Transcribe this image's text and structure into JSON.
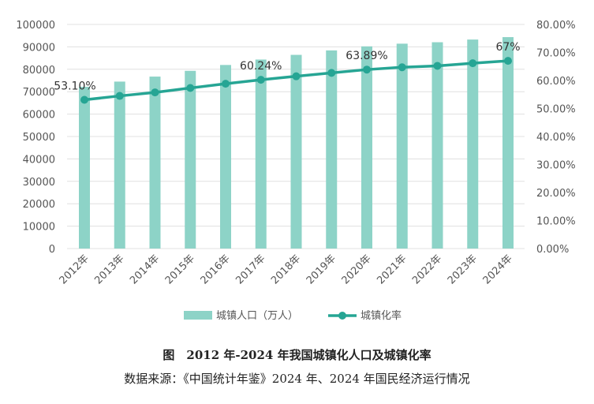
{
  "chart_data": {
    "type": "bar+line",
    "categories": [
      "2012年",
      "2013年",
      "2014年",
      "2015年",
      "2016年",
      "2017年",
      "2018年",
      "2019年",
      "2020年",
      "2021年",
      "2022年",
      "2023年",
      "2024年"
    ],
    "series": [
      {
        "name": "城镇人口（万人）",
        "type": "bar",
        "axis": "left",
        "color": "#8dd3c7",
        "values": [
          72175,
          74502,
          76738,
          79302,
          81924,
          84343,
          86433,
          88426,
          90220,
          91425,
          92071,
          93267,
          94350
        ]
      },
      {
        "name": "城镇化率",
        "type": "line",
        "axis": "right",
        "color": "#26a594",
        "values": [
          53.1,
          54.49,
          55.75,
          57.33,
          58.84,
          60.24,
          61.5,
          62.71,
          63.89,
          64.72,
          65.22,
          66.16,
          67.0
        ]
      }
    ],
    "data_labels": [
      {
        "index": 0,
        "text": "53.10%"
      },
      {
        "index": 5,
        "text": "60.24%"
      },
      {
        "index": 8,
        "text": "63.89%"
      },
      {
        "index": 12,
        "text": "67%"
      }
    ],
    "left_ticks": [
      "0",
      "10000",
      "20000",
      "30000",
      "40000",
      "50000",
      "60000",
      "70000",
      "80000",
      "90000",
      "100000"
    ],
    "right_ticks": [
      "0.00%",
      "10.00%",
      "20.00%",
      "30.00%",
      "40.00%",
      "50.00%",
      "60.00%",
      "70.00%",
      "80.00%"
    ],
    "ylim_left": [
      0,
      100000
    ],
    "ylim_right": [
      0,
      80
    ],
    "grid": true,
    "legend": "bottom"
  },
  "caption": {
    "title": "图　2012 年-2024 年我国城镇化人口及城镇化率",
    "source": "数据来源：《中国统计年鉴》2024 年、2024 年国民经济运行情况"
  }
}
